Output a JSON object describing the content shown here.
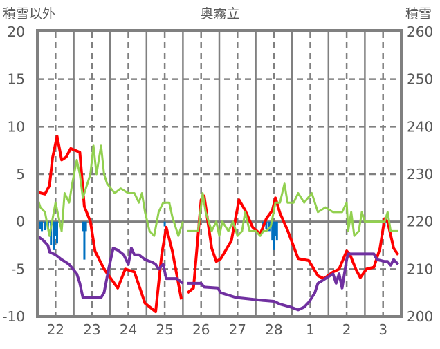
{
  "chart_data": {
    "type": "line",
    "title": "奥霧立",
    "ylabel_left": "積雪以外",
    "ylabel_right": "積雪",
    "ylim_left": [
      -10,
      20
    ],
    "ylim_right": [
      200,
      260
    ],
    "yticks_left": [
      "20",
      "15",
      "10",
      "5",
      "0",
      "-5",
      "-10"
    ],
    "yticks_right": [
      "260",
      "250",
      "240",
      "230",
      "220",
      "210",
      "200"
    ],
    "x_unit": "hours since start",
    "xlim": [
      0,
      240
    ],
    "xticks": [
      {
        "hour": 12,
        "label": "22"
      },
      {
        "hour": 36,
        "label": "23"
      },
      {
        "hour": 60,
        "label": "24"
      },
      {
        "hour": 84,
        "label": "25"
      },
      {
        "hour": 108,
        "label": "26"
      },
      {
        "hour": 132,
        "label": "27"
      },
      {
        "hour": 156,
        "label": "28"
      },
      {
        "hour": 180,
        "label": "1"
      },
      {
        "hour": 204,
        "label": "2"
      },
      {
        "hour": 228,
        "label": "3"
      }
    ],
    "grid": true,
    "colors": {
      "red": "#ff0000",
      "green": "#92d050",
      "purple": "#7030a0",
      "blue": "#0070c0",
      "axis": "#808080"
    },
    "series": [
      {
        "name": "red",
        "axis": "left",
        "color": "#ff0000",
        "points": [
          [
            0,
            3.1
          ],
          [
            5,
            2.9
          ],
          [
            8,
            3.8
          ],
          [
            10,
            6.7
          ],
          [
            13,
            9
          ],
          [
            16,
            6.5
          ],
          [
            19,
            6.8
          ],
          [
            22,
            7.7
          ],
          [
            28,
            7.3
          ],
          [
            31,
            1.6
          ],
          [
            35,
            0
          ],
          [
            38,
            -3.1
          ],
          [
            44,
            -5
          ],
          [
            53,
            -7
          ],
          [
            58,
            -5
          ],
          [
            64,
            -5.3
          ],
          [
            71,
            -8.6
          ],
          [
            78,
            -9.5
          ],
          [
            82,
            -3.5
          ],
          [
            85,
            -0.6
          ],
          [
            89,
            -3.1
          ],
          [
            95,
            -8.2
          ],
          null,
          [
            99,
            -7.5
          ],
          [
            103,
            -7
          ],
          [
            108,
            2.3
          ],
          [
            110,
            2.7
          ],
          [
            115,
            -2.8
          ],
          [
            118,
            -4.2
          ],
          [
            121,
            -3.9
          ],
          [
            128,
            -2
          ],
          [
            133,
            2.3
          ],
          [
            137,
            1.2
          ],
          [
            142,
            -0.6
          ],
          [
            147,
            -1.3
          ],
          [
            151,
            0.3
          ],
          [
            155,
            1.2
          ],
          [
            157,
            2.5
          ],
          [
            160,
            0.9
          ],
          [
            165,
            -0.9
          ],
          [
            172,
            -3.9
          ],
          [
            179,
            -4.1
          ],
          [
            185,
            -5.7
          ],
          [
            189,
            -6
          ],
          [
            195,
            -5.3
          ],
          [
            199,
            -5
          ],
          [
            204,
            -3.1
          ],
          [
            206,
            -3.4
          ],
          [
            210,
            -5
          ],
          [
            213,
            -5.9
          ],
          [
            217,
            -5
          ],
          [
            222,
            -4.8
          ],
          [
            226,
            -2.8
          ],
          [
            229,
            0.3
          ],
          [
            231,
            0
          ],
          [
            235,
            -2.8
          ],
          [
            238,
            -3.5
          ]
        ]
      },
      {
        "name": "green",
        "axis": "left",
        "color": "#92d050",
        "points": [
          [
            0,
            2.5
          ],
          [
            2,
            1.5
          ],
          [
            5,
            1
          ],
          [
            8,
            -1.5
          ],
          [
            12,
            2
          ],
          [
            14,
            0.5
          ],
          [
            16,
            -1
          ],
          [
            18,
            3
          ],
          [
            21,
            2
          ],
          [
            23,
            4
          ],
          [
            26,
            6.5
          ],
          [
            28,
            5
          ],
          [
            30,
            2.5
          ],
          [
            32,
            3.5
          ],
          [
            35,
            5
          ],
          [
            37,
            8
          ],
          [
            39,
            5
          ],
          [
            42,
            8
          ],
          [
            44,
            5
          ],
          [
            46,
            4
          ],
          [
            51,
            3
          ],
          [
            55,
            3.5
          ],
          [
            60,
            3
          ],
          [
            64,
            3
          ],
          [
            67,
            2
          ],
          [
            69,
            3
          ],
          [
            71,
            1
          ],
          [
            74,
            -1
          ],
          [
            77,
            -1.5
          ],
          [
            80,
            1
          ],
          [
            83,
            2
          ],
          [
            87,
            2
          ],
          [
            89,
            0.5
          ],
          [
            93,
            -1.5
          ],
          [
            96,
            0
          ],
          null,
          [
            99,
            -1
          ],
          [
            106,
            -1
          ],
          [
            109,
            3
          ],
          [
            111,
            1
          ],
          [
            115,
            -1
          ],
          [
            118,
            0
          ],
          [
            120,
            -1.5
          ],
          [
            122,
            0
          ],
          [
            126,
            -1
          ],
          [
            129,
            0
          ],
          [
            132,
            -1.5
          ],
          [
            135,
            -1
          ],
          [
            137,
            1
          ],
          [
            140,
            -1
          ],
          [
            144,
            -1
          ],
          [
            147,
            -1.5
          ],
          [
            149,
            -1
          ],
          [
            151,
            -1
          ],
          [
            154,
            -0.5
          ],
          [
            157,
            2
          ],
          [
            160,
            2
          ],
          [
            163,
            4
          ],
          [
            165,
            2
          ],
          [
            169,
            2
          ],
          [
            172,
            3
          ],
          [
            176,
            2
          ],
          [
            181,
            3
          ],
          [
            183,
            2
          ],
          [
            185,
            1
          ],
          [
            190,
            1.5
          ],
          [
            195,
            1
          ],
          [
            199,
            1
          ],
          [
            201,
            1
          ],
          [
            204,
            2
          ],
          [
            205,
            -1
          ],
          [
            207,
            1
          ],
          [
            209,
            -1.5
          ],
          [
            212,
            -1
          ],
          [
            214,
            1
          ],
          [
            216,
            0
          ],
          [
            220,
            0
          ],
          [
            224,
            0
          ],
          [
            229,
            0
          ],
          [
            231,
            1
          ],
          [
            233,
            -1
          ],
          [
            238,
            -1
          ]
        ]
      },
      {
        "name": "snow-depth",
        "axis": "right",
        "color": "#7030a0",
        "points": [
          [
            0,
            217
          ],
          [
            4,
            216
          ],
          [
            7,
            215
          ],
          [
            8,
            213.6
          ],
          [
            12,
            213
          ],
          [
            16,
            212
          ],
          [
            21,
            211
          ],
          [
            26,
            209
          ],
          [
            28,
            207
          ],
          [
            30,
            204
          ],
          [
            42,
            204
          ],
          [
            44,
            205
          ],
          [
            47,
            210
          ],
          [
            50,
            214.4
          ],
          [
            53,
            214
          ],
          [
            57,
            213
          ],
          [
            60,
            211
          ],
          [
            62,
            214.4
          ],
          [
            64,
            213
          ],
          [
            67,
            213
          ],
          [
            71,
            212
          ],
          [
            76,
            211.4
          ],
          [
            78,
            211
          ],
          [
            80,
            210
          ],
          [
            83,
            211
          ],
          [
            85,
            208
          ],
          [
            92,
            208
          ],
          [
            96,
            207
          ],
          null,
          [
            99,
            207
          ],
          [
            108,
            207
          ],
          [
            110,
            206.2
          ],
          [
            119,
            206
          ],
          [
            121,
            205
          ],
          [
            131,
            204
          ],
          [
            149,
            203.4
          ],
          [
            156,
            203.2
          ],
          [
            160,
            202.6
          ],
          [
            167,
            202
          ],
          [
            172,
            201.4
          ],
          [
            176,
            202
          ],
          [
            179,
            203
          ],
          [
            183,
            205
          ],
          [
            185,
            207
          ],
          [
            190,
            208
          ],
          [
            195,
            209
          ],
          [
            197,
            207
          ],
          [
            199,
            209
          ],
          [
            201,
            206
          ],
          [
            204,
            212
          ],
          [
            205,
            213.2
          ],
          [
            222,
            213.2
          ],
          [
            224,
            212
          ],
          [
            229,
            211.6
          ],
          [
            231,
            211.6
          ],
          [
            233,
            210.8
          ],
          [
            235,
            212
          ],
          [
            238,
            211
          ]
        ]
      },
      {
        "name": "precipitation",
        "type": "bar",
        "axis": "left",
        "color": "#0070c0",
        "points": [
          [
            0,
            -1
          ],
          [
            2,
            -0.8
          ],
          [
            3,
            -1
          ],
          [
            5,
            -0.9
          ],
          [
            7,
            -0.8
          ],
          [
            9,
            -2.5
          ],
          [
            11,
            -3
          ],
          [
            12,
            -1.5
          ],
          [
            13,
            -2.3
          ],
          [
            30,
            -1
          ],
          [
            31,
            -4
          ],
          [
            32,
            -1
          ],
          [
            84,
            -0.5
          ],
          [
            149,
            -1
          ],
          [
            151,
            -0.8
          ],
          [
            153,
            -1
          ],
          [
            155,
            -2
          ],
          [
            156,
            -3
          ],
          [
            157,
            -1.5
          ],
          [
            158,
            -2
          ],
          [
            229,
            -0.5
          ]
        ]
      }
    ]
  }
}
